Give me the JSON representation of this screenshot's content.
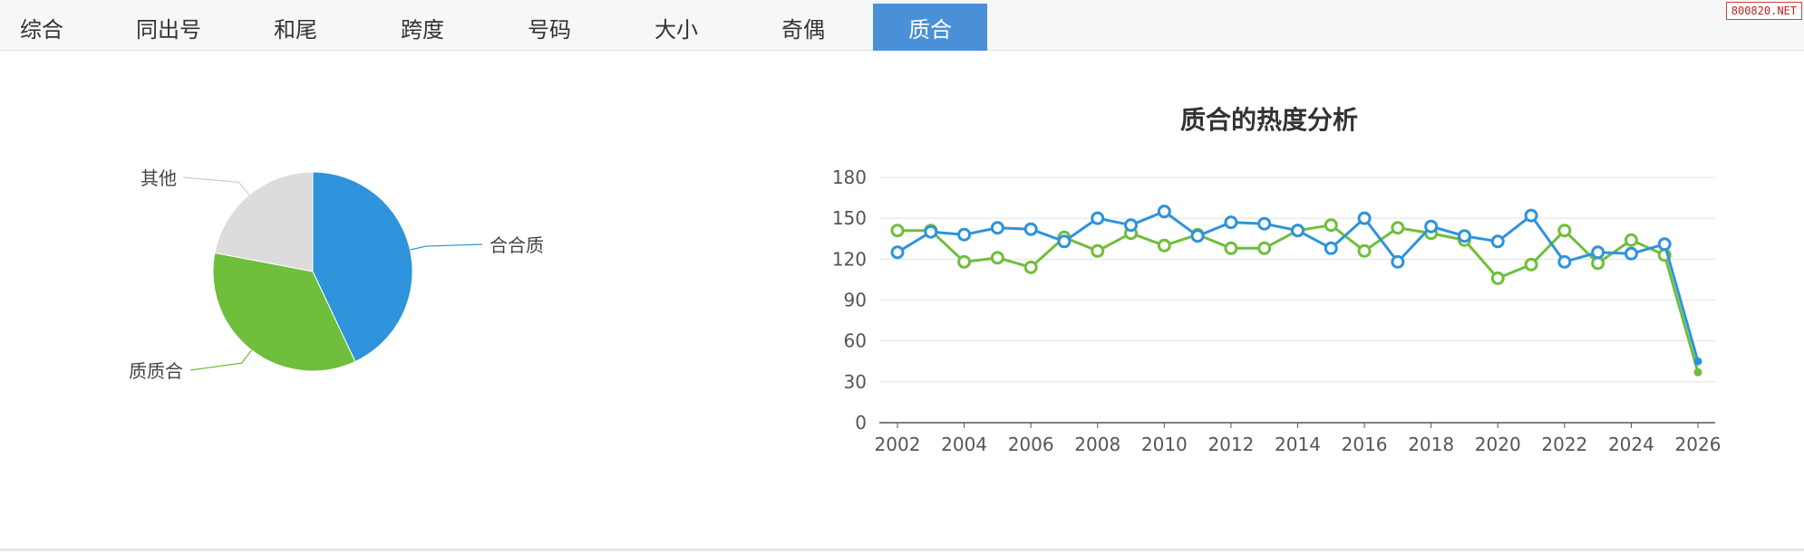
{
  "tabs": [
    {
      "label": "综合",
      "active": false
    },
    {
      "label": "同出号",
      "active": false
    },
    {
      "label": "和尾",
      "active": false
    },
    {
      "label": "跨度",
      "active": false
    },
    {
      "label": "号码",
      "active": false
    },
    {
      "label": "大小",
      "active": false
    },
    {
      "label": "奇偶",
      "active": false
    },
    {
      "label": "质合",
      "active": true
    }
  ],
  "watermark": "800820.NET",
  "colors": {
    "tab_active_bg": "#4a90d9",
    "blue": "#2e93db",
    "green": "#6fbe3c",
    "gray": "#dcdcdc",
    "grid": "#e3e3e3",
    "axis": "#555555"
  },
  "chart_data": [
    {
      "type": "pie",
      "labels": [
        "合合质",
        "质质合",
        "其他"
      ],
      "values": [
        43,
        35,
        22
      ],
      "colors": [
        "#2e93db",
        "#6fbe3c",
        "#dcdcdc"
      ]
    },
    {
      "type": "line",
      "title": "质合的热度分析",
      "x": [
        2002,
        2003,
        2004,
        2005,
        2006,
        2007,
        2008,
        2009,
        2010,
        2011,
        2012,
        2013,
        2014,
        2015,
        2016,
        2017,
        2018,
        2019,
        2020,
        2021,
        2022,
        2023,
        2024,
        2025,
        2026
      ],
      "xticks": [
        2002,
        2004,
        2006,
        2008,
        2010,
        2012,
        2014,
        2016,
        2018,
        2020,
        2022,
        2024,
        2026
      ],
      "yticks": [
        0,
        30,
        60,
        90,
        120,
        150,
        180
      ],
      "ylim": [
        0,
        180
      ],
      "grid": true,
      "series": [
        {
          "color": "#2e93db",
          "values": [
            125,
            140,
            138,
            143,
            142,
            133,
            150,
            145,
            155,
            137,
            147,
            146,
            141,
            128,
            150,
            118,
            144,
            137,
            133,
            152,
            118,
            125,
            124,
            131,
            45
          ]
        },
        {
          "color": "#6fbe3c",
          "values": [
            141,
            141,
            118,
            121,
            114,
            136,
            126,
            139,
            130,
            138,
            128,
            128,
            141,
            145,
            126,
            143,
            139,
            134,
            106,
            116,
            141,
            117,
            134,
            123,
            37
          ]
        }
      ]
    }
  ]
}
